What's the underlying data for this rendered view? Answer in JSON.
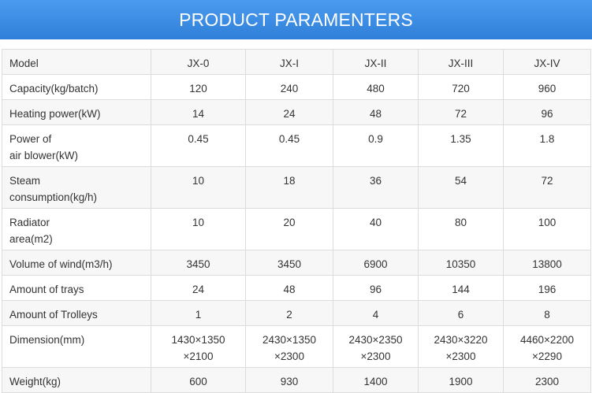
{
  "header": {
    "title": "PRODUCT PARAMENTERS"
  },
  "table": {
    "columns": [
      "Model",
      "JX-0",
      "JX-I",
      "JX-II",
      "JX-III",
      "JX-IV"
    ],
    "rows": [
      [
        [
          "Capacity(kg/batch)"
        ],
        [
          "120"
        ],
        [
          "240"
        ],
        [
          "480"
        ],
        [
          "720"
        ],
        [
          "960"
        ]
      ],
      [
        [
          "Heating power(kW)"
        ],
        [
          "14"
        ],
        [
          "24"
        ],
        [
          "48"
        ],
        [
          "72"
        ],
        [
          "96"
        ]
      ],
      [
        [
          "Power of",
          "air blower(kW)"
        ],
        [
          "0.45"
        ],
        [
          "0.45"
        ],
        [
          "0.9"
        ],
        [
          "1.35"
        ],
        [
          "1.8"
        ]
      ],
      [
        [
          "Steam",
          "consumption(kg/h)"
        ],
        [
          "10"
        ],
        [
          "18"
        ],
        [
          "36"
        ],
        [
          "54"
        ],
        [
          "72"
        ]
      ],
      [
        [
          "Radiator",
          "area(m2)"
        ],
        [
          "10"
        ],
        [
          "20"
        ],
        [
          "40"
        ],
        [
          "80"
        ],
        [
          "100"
        ]
      ],
      [
        [
          "Volume of wind(m3/h)"
        ],
        [
          "3450"
        ],
        [
          "3450"
        ],
        [
          "6900"
        ],
        [
          "10350"
        ],
        [
          "13800"
        ]
      ],
      [
        [
          "Amount of trays"
        ],
        [
          "24"
        ],
        [
          "48"
        ],
        [
          "96"
        ],
        [
          "144"
        ],
        [
          "196"
        ]
      ],
      [
        [
          "Amount of Trolleys"
        ],
        [
          "1"
        ],
        [
          "2"
        ],
        [
          "4"
        ],
        [
          "6"
        ],
        [
          "8"
        ]
      ],
      [
        [
          "Dimension(mm)"
        ],
        [
          "1430×1350",
          "×2100"
        ],
        [
          "2430×1350",
          "×2300"
        ],
        [
          "2430×2350",
          "×2300"
        ],
        [
          "2430×3220",
          "×2300"
        ],
        [
          "4460×2200",
          "×2290"
        ]
      ],
      [
        [
          "Weight(kg)"
        ],
        [
          "600"
        ],
        [
          "930"
        ],
        [
          "1400"
        ],
        [
          "1900"
        ],
        [
          "2300"
        ]
      ]
    ]
  }
}
